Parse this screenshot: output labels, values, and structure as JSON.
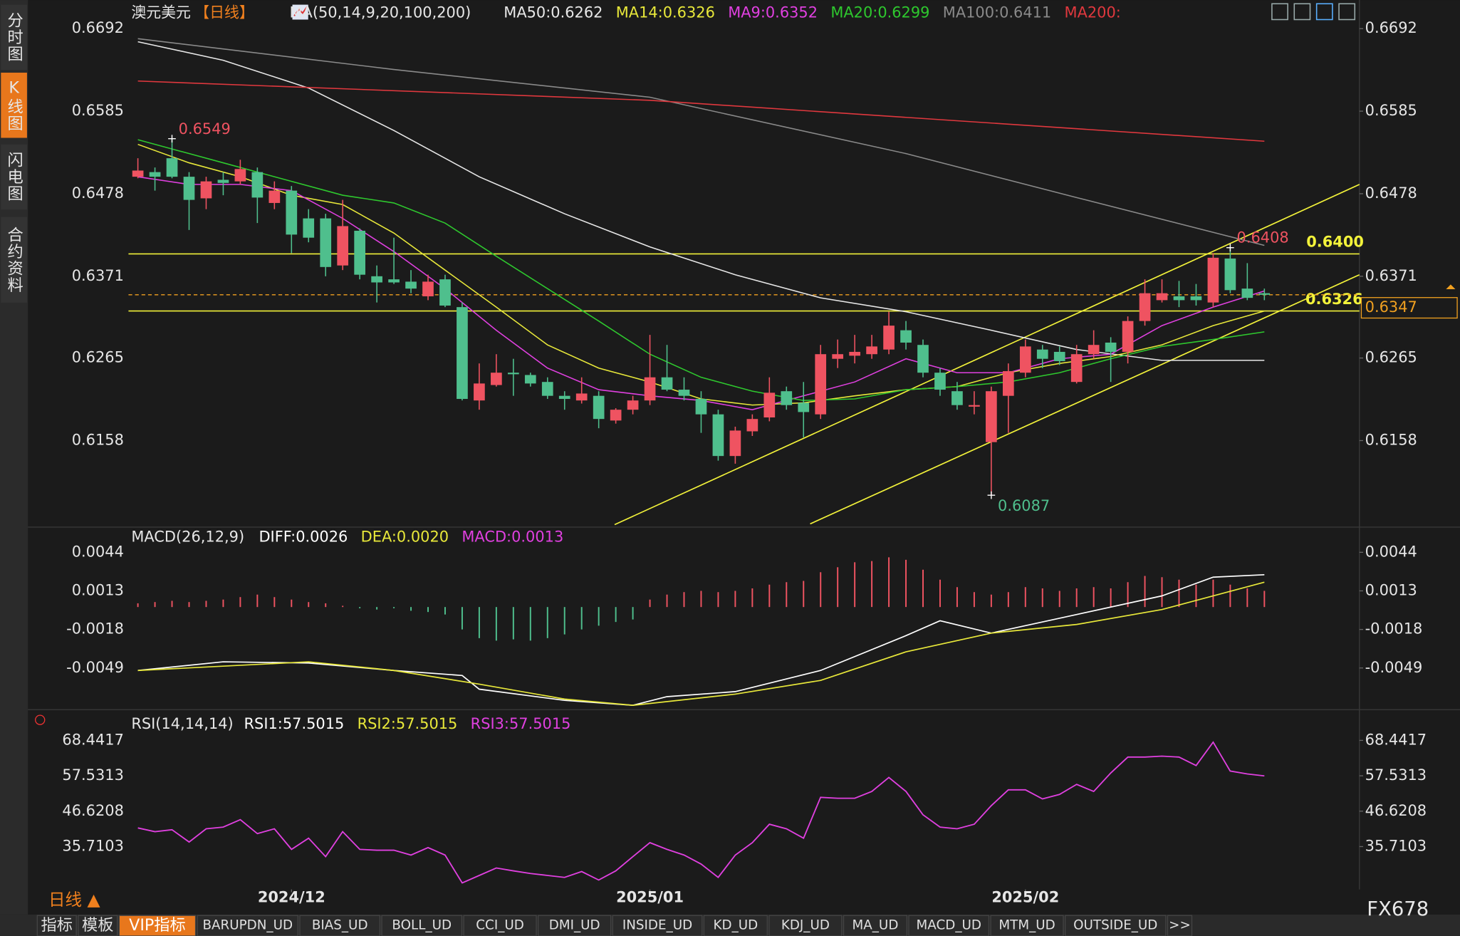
{
  "sidebar": [
    "分时图",
    "K线图",
    "闪电图",
    "合约资料"
  ],
  "toolbar": {
    "period": "日线 ▲",
    "brand": "FX678",
    "tabs": [
      "指标",
      "模板",
      "VIP指标",
      "BARUPDN_UD",
      "BIAS_UD",
      "BOLL_UD",
      "CCI_UD",
      "DMI_UD",
      "INSIDE_UD",
      "KD_UD",
      "KDJ_UD",
      "MA_UD",
      "MACD_UD",
      "MTM_UD",
      "OUTSIDE_UD",
      ">>"
    ]
  },
  "chart_data": [
    {
      "type": "candlestick",
      "title": "澳元美元",
      "period": "【日线】",
      "indicator": "MA(50,14,9,20,100,200)",
      "up_color": "#ef5361",
      "down_color": "#4fbf8d",
      "open": [
        0.65,
        0.6506,
        0.6524,
        0.65,
        0.6472,
        0.6496,
        0.6494,
        0.6506,
        0.6466,
        0.6482,
        0.6446,
        0.6446,
        0.6385,
        0.643,
        0.6371,
        0.6367,
        0.6364,
        0.6345,
        0.6367,
        0.6331,
        0.621,
        0.623,
        0.6246,
        0.6243,
        0.6234,
        0.6216,
        0.621,
        0.6216,
        0.6184,
        0.6198,
        0.621,
        0.624,
        0.6224,
        0.6212,
        0.6192,
        0.6138,
        0.617,
        0.6188,
        0.6222,
        0.6207,
        0.6192,
        0.6264,
        0.6268,
        0.627,
        0.6276,
        0.6301,
        0.6282,
        0.6246,
        0.6222,
        0.6202,
        0.6156,
        0.6216,
        0.6246,
        0.6276,
        0.6273,
        0.6234,
        0.627,
        0.6285,
        0.6273,
        0.6313,
        0.634,
        0.6345,
        0.6345,
        0.6337,
        0.6394,
        0.6355,
        0.6349
      ],
      "high": [
        0.6524,
        0.6512,
        0.6549,
        0.6506,
        0.65,
        0.6506,
        0.6522,
        0.6512,
        0.6494,
        0.6488,
        0.6458,
        0.6452,
        0.647,
        0.6433,
        0.6385,
        0.6421,
        0.6379,
        0.6373,
        0.6373,
        0.6337,
        0.6258,
        0.627,
        0.6264,
        0.6246,
        0.624,
        0.6222,
        0.624,
        0.6222,
        0.62,
        0.6216,
        0.6295,
        0.6282,
        0.624,
        0.6222,
        0.6198,
        0.6176,
        0.6192,
        0.624,
        0.6228,
        0.6234,
        0.6282,
        0.6289,
        0.6295,
        0.6295,
        0.6325,
        0.6313,
        0.6289,
        0.6252,
        0.6234,
        0.6222,
        0.6228,
        0.6258,
        0.6289,
        0.6282,
        0.628,
        0.6282,
        0.6301,
        0.6292,
        0.6319,
        0.6367,
        0.6367,
        0.6365,
        0.6361,
        0.6401,
        0.6408,
        0.6388,
        0.6355
      ],
      "low": [
        0.6498,
        0.6482,
        0.6498,
        0.6431,
        0.6458,
        0.6476,
        0.649,
        0.644,
        0.6458,
        0.6401,
        0.6415,
        0.6371,
        0.6379,
        0.6367,
        0.6337,
        0.6361,
        0.6349,
        0.634,
        0.6331,
        0.621,
        0.6198,
        0.6228,
        0.6216,
        0.6228,
        0.6212,
        0.6198,
        0.6206,
        0.6174,
        0.618,
        0.6192,
        0.6204,
        0.6222,
        0.621,
        0.6168,
        0.6132,
        0.6128,
        0.6164,
        0.6183,
        0.6198,
        0.6162,
        0.6186,
        0.6252,
        0.6258,
        0.6264,
        0.627,
        0.6276,
        0.624,
        0.6216,
        0.6198,
        0.6192,
        0.6087,
        0.6168,
        0.624,
        0.6252,
        0.6256,
        0.6232,
        0.6264,
        0.6234,
        0.6258,
        0.6307,
        0.6337,
        0.6331,
        0.6333,
        0.6331,
        0.6349,
        0.634,
        0.634
      ],
      "close": [
        0.6508,
        0.65,
        0.65,
        0.647,
        0.6494,
        0.6492,
        0.651,
        0.6473,
        0.6482,
        0.6425,
        0.6421,
        0.6383,
        0.6436,
        0.6373,
        0.6363,
        0.6363,
        0.6355,
        0.6364,
        0.6333,
        0.6212,
        0.6232,
        0.6246,
        0.6244,
        0.6232,
        0.6216,
        0.6212,
        0.6219,
        0.6186,
        0.6198,
        0.621,
        0.624,
        0.6224,
        0.6216,
        0.6192,
        0.6138,
        0.6171,
        0.6186,
        0.622,
        0.6204,
        0.6195,
        0.627,
        0.627,
        0.6273,
        0.628,
        0.6307,
        0.6285,
        0.6246,
        0.6224,
        0.6204,
        0.6204,
        0.6222,
        0.6248,
        0.628,
        0.6264,
        0.6261,
        0.627,
        0.6282,
        0.6273,
        0.6313,
        0.6349,
        0.6349,
        0.634,
        0.634,
        0.6395,
        0.6353,
        0.6343,
        0.6347
      ],
      "series": [
        {
          "name": "MA50:0.6262",
          "color": "#e8e8e8",
          "x": [
            0,
            5,
            10,
            15,
            20,
            25,
            30,
            35,
            40,
            45,
            50,
            55,
            60,
            66
          ],
          "values": [
            0.6675,
            0.6651,
            0.6615,
            0.656,
            0.65,
            0.6452,
            0.6409,
            0.6373,
            0.6343,
            0.6325,
            0.6301,
            0.6276,
            0.6262,
            0.6262
          ]
        },
        {
          "name": "MA14:0.6326",
          "color": "#e8e83a",
          "x": [
            0,
            3,
            6,
            9,
            12,
            15,
            18,
            21,
            24,
            27,
            30,
            33,
            36,
            39,
            42,
            45,
            48,
            51,
            54,
            57,
            60,
            63,
            66
          ],
          "values": [
            0.6542,
            0.6518,
            0.65,
            0.6476,
            0.6464,
            0.6427,
            0.6379,
            0.6331,
            0.6282,
            0.6252,
            0.6234,
            0.6212,
            0.6204,
            0.6207,
            0.6216,
            0.6224,
            0.6228,
            0.6246,
            0.6258,
            0.6267,
            0.6282,
            0.6307,
            0.6326
          ]
        },
        {
          "name": "MA9:0.6352",
          "color": "#e040e0",
          "x": [
            0,
            3,
            6,
            9,
            12,
            15,
            18,
            21,
            24,
            27,
            30,
            33,
            36,
            39,
            42,
            45,
            48,
            51,
            54,
            57,
            60,
            63,
            66
          ],
          "values": [
            0.65,
            0.649,
            0.649,
            0.6482,
            0.6446,
            0.6403,
            0.6355,
            0.6301,
            0.6252,
            0.6224,
            0.6216,
            0.621,
            0.6198,
            0.6216,
            0.6234,
            0.6264,
            0.6246,
            0.6246,
            0.6264,
            0.627,
            0.6307,
            0.6331,
            0.6352
          ]
        },
        {
          "name": "MA20:0.6299",
          "color": "#2ec82e",
          "x": [
            0,
            5,
            9,
            12,
            15,
            18,
            21,
            24,
            27,
            30,
            33,
            36,
            39,
            42,
            45,
            48,
            51,
            54,
            57,
            60,
            63,
            66
          ],
          "values": [
            0.6548,
            0.6518,
            0.6494,
            0.6476,
            0.6466,
            0.644,
            0.6397,
            0.6355,
            0.6313,
            0.627,
            0.624,
            0.6222,
            0.621,
            0.6212,
            0.6224,
            0.6228,
            0.6234,
            0.6246,
            0.6264,
            0.628,
            0.6289,
            0.6299
          ]
        },
        {
          "name": "MA100:0.6411",
          "color": "#8a8a8a",
          "x": [
            0,
            15,
            30,
            45,
            55,
            66
          ],
          "values": [
            0.6679,
            0.6639,
            0.6603,
            0.653,
            0.6473,
            0.6411
          ]
        },
        {
          "name": "MA200:",
          "color": "#e0383e",
          "x": [
            0,
            30,
            66
          ],
          "values": [
            0.6624,
            0.6599,
            0.6546
          ]
        }
      ],
      "annotations": [
        {
          "value": 0.6549,
          "x": 2,
          "color": "#ef5361"
        },
        {
          "value": 0.6408,
          "x": 64,
          "color": "#ef5361"
        },
        {
          "value": 0.6087,
          "x": 50,
          "color": "#4fbf8d"
        }
      ],
      "hlines": [
        {
          "value": 0.64,
          "label": "0.6400"
        },
        {
          "value": 0.6326
        }
      ],
      "trendlines": [
        {
          "x": [
            27.93,
            71.57
          ],
          "values": [
            0.6049,
            0.649
          ]
        },
        {
          "x": [
            39.39,
            71.57
          ],
          "values": [
            0.605,
            0.6373
          ]
        }
      ],
      "line_color": "#f2f23a",
      "last_price": 0.6347,
      "last_color": "#f0a020",
      "xlim": [
        -0.55,
        71.57
      ],
      "ylim": [
        0.6047,
        0.6717
      ],
      "yticks": [
        0.6692,
        0.6585,
        0.6478,
        0.6371,
        0.6265,
        0.6158
      ]
    },
    {
      "type": "macd",
      "title": "MACD(26,12,9)",
      "histogram_name": "MACD:0.0013",
      "histogram_color": "#e040e0",
      "up_color": "#ef5361",
      "down_color": "#4fbf8d",
      "histogram": [
        0.0003,
        0.0004,
        0.0005,
        0.0004,
        0.0005,
        0.0006,
        0.0008,
        0.001,
        0.0008,
        0.0006,
        0.0004,
        0.0003,
        0.0001,
        -0.0001,
        -0.0002,
        -0.0001,
        -0.0003,
        -0.0004,
        -0.0006,
        -0.0018,
        -0.0025,
        -0.0027,
        -0.0026,
        -0.0027,
        -0.0025,
        -0.0022,
        -0.0018,
        -0.0015,
        -0.0012,
        -0.001,
        0.0006,
        0.001,
        0.0012,
        0.0013,
        0.0012,
        0.0013,
        0.0015,
        0.0018,
        0.002,
        0.0021,
        0.0028,
        0.0032,
        0.0036,
        0.0037,
        0.004,
        0.0038,
        0.003,
        0.0022,
        0.0016,
        0.0012,
        0.001,
        0.0012,
        0.0016,
        0.0015,
        0.0013,
        0.0015,
        0.0016,
        0.0015,
        0.002,
        0.0025,
        0.0024,
        0.0022,
        0.0018,
        0.0022,
        0.0018,
        0.0015,
        0.0013
      ],
      "series": [
        {
          "name": "DIFF:0.0026",
          "color": "#ffffff",
          "x": [
            0,
            5,
            10,
            15,
            19,
            20,
            25,
            29,
            31,
            35,
            40,
            45,
            47,
            50,
            52,
            55,
            60,
            63,
            66
          ],
          "values": [
            -0.0051,
            -0.0044,
            -0.0045,
            -0.0051,
            -0.0055,
            -0.0066,
            -0.0075,
            -0.0079,
            -0.0072,
            -0.0068,
            -0.0051,
            -0.0023,
            -0.0011,
            -0.0021,
            -0.0015,
            -0.0006,
            0.0009,
            0.0024,
            0.0026
          ]
        },
        {
          "name": "DEA:0.0020",
          "color": "#e8e83a",
          "x": [
            0,
            10,
            15,
            20,
            25,
            29,
            35,
            40,
            45,
            50,
            55,
            60,
            66
          ],
          "values": [
            -0.0051,
            -0.0044,
            -0.0051,
            -0.0062,
            -0.0074,
            -0.0079,
            -0.007,
            -0.0059,
            -0.0036,
            -0.0021,
            -0.0014,
            -0.0002,
            0.002
          ]
        }
      ],
      "xlim": [
        -0.55,
        71.57
      ],
      "ylim": [
        -0.0081,
        0.005
      ],
      "yticks": [
        0.0044,
        0.0013,
        -0.0018,
        -0.0049
      ]
    },
    {
      "type": "line",
      "title": "RSI(14,14,14)",
      "series": [
        {
          "name": "RSI1:57.5015",
          "color": "#ffffff"
        },
        {
          "name": "RSI2:57.5015",
          "color": "#e8e83a"
        },
        {
          "name": "RSI3:57.5015",
          "color": "#e040e0",
          "values": [
            41.45,
            40.3,
            40.9,
            37.1,
            41.2,
            41.7,
            44.0,
            39.7,
            41.2,
            34.85,
            38.3,
            32.6,
            40.3,
            34.85,
            34.6,
            34.6,
            33.1,
            35.4,
            33.1,
            24.5,
            26.8,
            29.1,
            28.2,
            27.4,
            26.8,
            26.2,
            28.0,
            25.4,
            28.2,
            32.6,
            36.9,
            34.85,
            33.1,
            30.3,
            26.2,
            33.1,
            36.9,
            42.6,
            41.2,
            38.3,
            50.9,
            50.6,
            50.6,
            52.7,
            57.0,
            52.7,
            45.5,
            41.7,
            41.2,
            42.6,
            48.3,
            53.2,
            53.2,
            50.4,
            51.8,
            54.9,
            52.7,
            58.4,
            63.3,
            63.3,
            63.6,
            63.3,
            60.7,
            67.9,
            59.0,
            58.1,
            57.5015
          ]
        }
      ],
      "xlim": [
        -0.55,
        71.57
      ],
      "ylim": [
        22.5,
        71.31
      ],
      "yticks": [
        68.4417,
        57.5313,
        46.6208,
        35.7103
      ],
      "xticks": [
        {
          "value": 9,
          "label": "2024/12"
        },
        {
          "value": 30,
          "label": "2025/01"
        },
        {
          "value": 52,
          "label": "2025/02"
        }
      ]
    }
  ]
}
